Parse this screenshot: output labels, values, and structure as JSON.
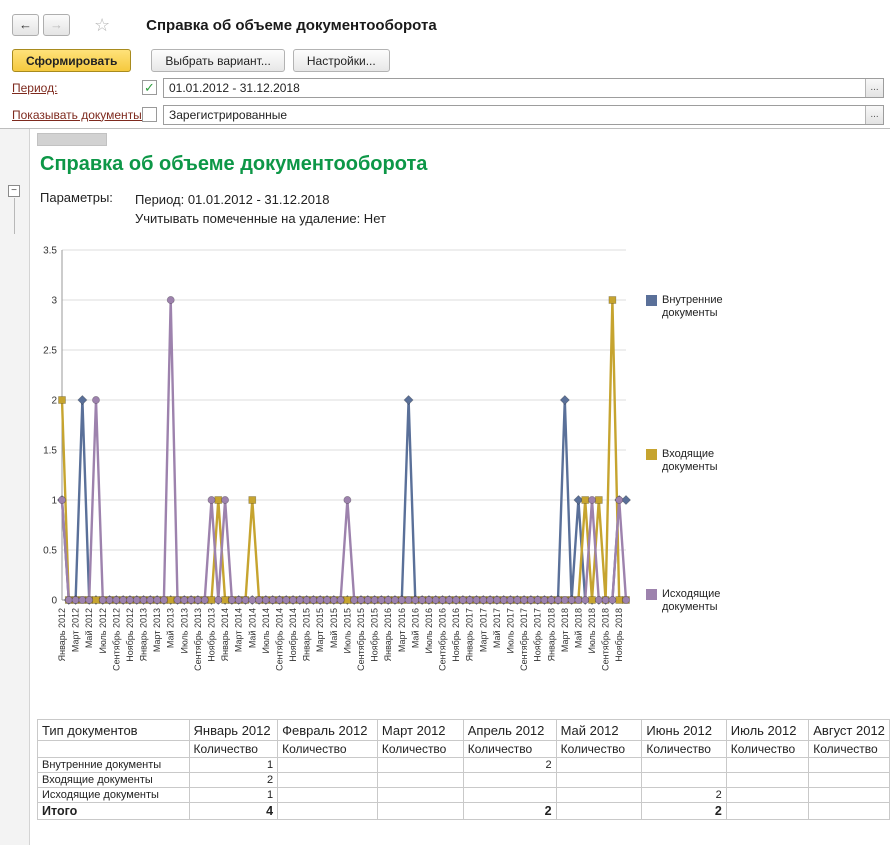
{
  "window": {
    "title": "Справка об объеме документооборота"
  },
  "icons": {
    "back": "←",
    "forward": "→",
    "star": "☆",
    "check": "✓",
    "choose": "...",
    "collapse": "−"
  },
  "colors": {
    "accent_green": "#0d9747",
    "button_yellow": "#f5c93e",
    "series_internal": "#5a7099",
    "series_incoming": "#c6a42f",
    "series_outgoing": "#9d82ad"
  },
  "toolbar": {
    "generate": "Сформировать",
    "choose_variant": "Выбрать вариант...",
    "settings": "Настройки..."
  },
  "filters": {
    "period": {
      "label": "Период:",
      "checked": true,
      "value": "01.01.2012 - 31.12.2018"
    },
    "show_documents": {
      "label": "Показывать документы:",
      "checked": false,
      "value": "Зарегистрированные"
    }
  },
  "report": {
    "title": "Справка об объеме документооборота",
    "params_label": "Параметры:",
    "param_lines": [
      "Период: 01.01.2012 - 31.12.2018",
      "Учитывать помеченные на удаление: Нет"
    ]
  },
  "chart_data": {
    "type": "line",
    "title": "",
    "xlabel": "",
    "ylabel": "",
    "ylim": [
      0,
      3.5
    ],
    "y_ticks": [
      "0",
      "0.5",
      "1",
      "1.5",
      "2",
      "2.5",
      "3",
      "3.5"
    ],
    "grid": true,
    "legend_position": "right",
    "months_count": 84,
    "x_range": "Январь 2012 — Декабрь 2018, шаг 1 месяц",
    "x_tick_labels": [
      "Январь 2012",
      "Март 2012",
      "Май 2012",
      "Июль 2012",
      "Сентябрь 2012",
      "Ноябрь 2012",
      "Январь 2013",
      "Март 2013",
      "Май 2013",
      "Июль 2013",
      "Сентябрь 2013",
      "Ноябрь 2013",
      "Январь 2014",
      "Март 2014",
      "Май 2014",
      "Июль 2014",
      "Сентябрь 2014",
      "Ноябрь 2014",
      "Январь 2015",
      "Март 2015",
      "Май 2015",
      "Июль 2015",
      "Сентябрь 2015",
      "Ноябрь 2015",
      "Январь 2016",
      "Март 2016",
      "Май 2016",
      "Июль 2016",
      "Сентябрь 2016",
      "Ноябрь 2016",
      "Январь 2017",
      "Март 2017",
      "Май 2017",
      "Июль 2017",
      "Сентябрь 2017",
      "Ноябрь 2017",
      "Январь 2018",
      "Март 2018",
      "Май 2018",
      "Июль 2018",
      "Сентябрь 2018",
      "Ноябрь 2018"
    ],
    "series": [
      {
        "name": "Внутренние документы",
        "color": "#5a7099",
        "marker": "diamond",
        "values": [
          1,
          0,
          0,
          2,
          0,
          0,
          0,
          0,
          0,
          0,
          0,
          0,
          0,
          0,
          0,
          0,
          0,
          0,
          0,
          0,
          0,
          0,
          0,
          0,
          0,
          0,
          0,
          0,
          0,
          0,
          0,
          0,
          0,
          0,
          0,
          0,
          0,
          0,
          0,
          0,
          0,
          0,
          0,
          0,
          0,
          0,
          0,
          0,
          0,
          0,
          0,
          2,
          0,
          0,
          0,
          0,
          0,
          0,
          0,
          0,
          0,
          0,
          0,
          0,
          0,
          0,
          0,
          0,
          0,
          0,
          0,
          0,
          0,
          0,
          2,
          0,
          1,
          0,
          0,
          0,
          0,
          0,
          1,
          1
        ]
      },
      {
        "name": "Входящие документы",
        "color": "#c6a42f",
        "marker": "square",
        "values": [
          2,
          0,
          0,
          0,
          0,
          0,
          0,
          0,
          0,
          0,
          0,
          0,
          0,
          0,
          0,
          0,
          0,
          0,
          0,
          0,
          0,
          0,
          0,
          1,
          0,
          0,
          0,
          0,
          1,
          0,
          0,
          0,
          0,
          0,
          0,
          0,
          0,
          0,
          0,
          0,
          0,
          0,
          0,
          0,
          0,
          0,
          0,
          0,
          0,
          0,
          0,
          0,
          0,
          0,
          0,
          0,
          0,
          0,
          0,
          0,
          0,
          0,
          0,
          0,
          0,
          0,
          0,
          0,
          0,
          0,
          0,
          0,
          0,
          0,
          0,
          0,
          0,
          1,
          0,
          1,
          0,
          3,
          0,
          0
        ]
      },
      {
        "name": "Исходящие документы",
        "color": "#9d82ad",
        "marker": "circle",
        "values": [
          1,
          0,
          0,
          0,
          0,
          2,
          0,
          0,
          0,
          0,
          0,
          0,
          0,
          0,
          0,
          0,
          3,
          0,
          0,
          0,
          0,
          0,
          1,
          0,
          1,
          0,
          0,
          0,
          0,
          0,
          0,
          0,
          0,
          0,
          0,
          0,
          0,
          0,
          0,
          0,
          0,
          0,
          1,
          0,
          0,
          0,
          0,
          0,
          0,
          0,
          0,
          0,
          0,
          0,
          0,
          0,
          0,
          0,
          0,
          0,
          0,
          0,
          0,
          0,
          0,
          0,
          0,
          0,
          0,
          0,
          0,
          0,
          0,
          0,
          0,
          0,
          0,
          0,
          1,
          0,
          0,
          0,
          1,
          0
        ]
      }
    ]
  },
  "table": {
    "col1_header": "Тип документов",
    "month_columns": [
      "Январь 2012",
      "Февраль 2012",
      "Март 2012",
      "Апрель 2012",
      "Май 2012",
      "Июнь 2012",
      "Июль 2012",
      "Август 2012"
    ],
    "sub_header": "Количество",
    "rows": [
      {
        "name": "Внутренние документы",
        "bold": false,
        "values": [
          "1",
          "",
          "",
          "2",
          "",
          "",
          "",
          ""
        ]
      },
      {
        "name": "Входящие документы",
        "bold": false,
        "values": [
          "2",
          "",
          "",
          "",
          "",
          "",
          "",
          ""
        ]
      },
      {
        "name": "Исходящие документы",
        "bold": false,
        "values": [
          "1",
          "",
          "",
          "",
          "",
          "2",
          "",
          ""
        ]
      },
      {
        "name": "Итого",
        "bold": true,
        "values": [
          "4",
          "",
          "",
          "2",
          "",
          "2",
          "",
          ""
        ]
      }
    ]
  }
}
